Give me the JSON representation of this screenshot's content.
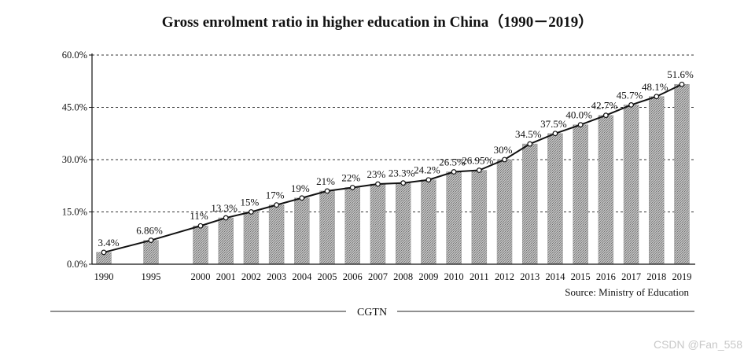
{
  "chart_data": {
    "type": "bar+line",
    "title": "Gross enrolment ratio in higher education in China（1990－2019）",
    "categories": [
      "1990",
      "1995",
      "2000",
      "2001",
      "2002",
      "2003",
      "2004",
      "2005",
      "2006",
      "2007",
      "2008",
      "2009",
      "2010",
      "2011",
      "2012",
      "2013",
      "2014",
      "2015",
      "2016",
      "2017",
      "2018",
      "2019"
    ],
    "values": [
      3.4,
      6.86,
      11,
      13.3,
      15,
      17,
      19,
      21,
      22,
      23,
      23.3,
      24.2,
      26.5,
      26.95,
      30,
      34.5,
      37.5,
      40.0,
      42.7,
      45.7,
      48.1,
      51.6
    ],
    "data_labels": [
      "3.4%",
      "6.86%",
      "11%",
      "13.3%",
      "15%",
      "17%",
      "19%",
      "21%",
      "22%",
      "23%",
      "23.3%",
      "24.2%",
      "26.5%",
      "26.95%",
      "30%",
      "34.5%",
      "37.5%",
      "40.0%",
      "42.7%",
      "45.7%",
      "48.1%",
      "51.6%"
    ],
    "yticks": [
      0,
      15,
      30,
      45,
      60
    ],
    "ytick_labels": [
      "0.0%",
      "15.0%",
      "30.0%",
      "45.0%",
      "60.0%"
    ],
    "ylim": [
      0,
      60
    ],
    "xlabel": "",
    "ylabel": "",
    "grid": "horizontal dashed",
    "source": "Source: Ministry of Education"
  },
  "footer": {
    "brand": "CGTN"
  },
  "watermark": "CSDN @Fan_558",
  "colors": {
    "bar": "#a9a9a9",
    "line": "#111111",
    "marker_fill": "#ffffff",
    "grid": "#333333"
  }
}
